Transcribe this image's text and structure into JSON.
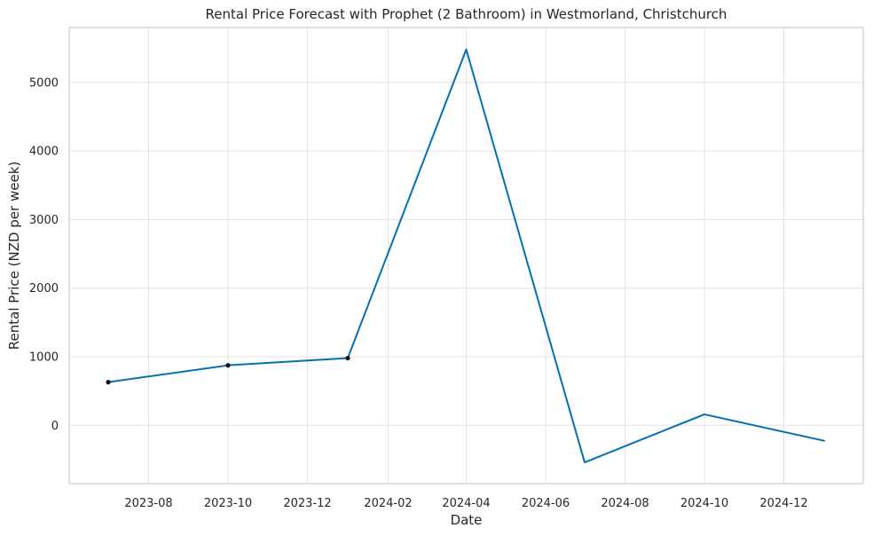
{
  "chart_data": {
    "type": "line",
    "title": "Rental Price Forecast with Prophet (2 Bathroom) in Westmorland, Christchurch",
    "xlabel": "Date",
    "ylabel": "Rental Price (NZD per week)",
    "xlim": [
      "2023-06-01",
      "2025-01-31"
    ],
    "ylim": [
      -850,
      5800
    ],
    "x_ticks": [
      "2023-08-01",
      "2023-10-01",
      "2023-12-01",
      "2024-02-01",
      "2024-04-01",
      "2024-06-01",
      "2024-08-01",
      "2024-10-01",
      "2024-12-01"
    ],
    "x_tick_labels": [
      "2023-08",
      "2023-10",
      "2023-12",
      "2024-02",
      "2024-04",
      "2024-06",
      "2024-08",
      "2024-10",
      "2024-12"
    ],
    "y_ticks": [
      0,
      1000,
      2000,
      3000,
      4000,
      5000
    ],
    "y_tick_labels": [
      "0",
      "1000",
      "2000",
      "3000",
      "4000",
      "5000"
    ],
    "grid": true,
    "series": [
      {
        "kind": "line",
        "color": "#0072b2",
        "x": [
          "2023-07-01",
          "2023-10-01",
          "2024-01-01",
          "2024-04-01",
          "2024-07-01",
          "2024-10-01",
          "2025-01-01"
        ],
        "y": [
          630,
          875,
          980,
          5480,
          -540,
          160,
          -225
        ]
      },
      {
        "kind": "scatter",
        "color": "#111111",
        "x": [
          "2023-07-01",
          "2023-10-01",
          "2024-01-01"
        ],
        "y": [
          630,
          875,
          980
        ]
      }
    ]
  }
}
